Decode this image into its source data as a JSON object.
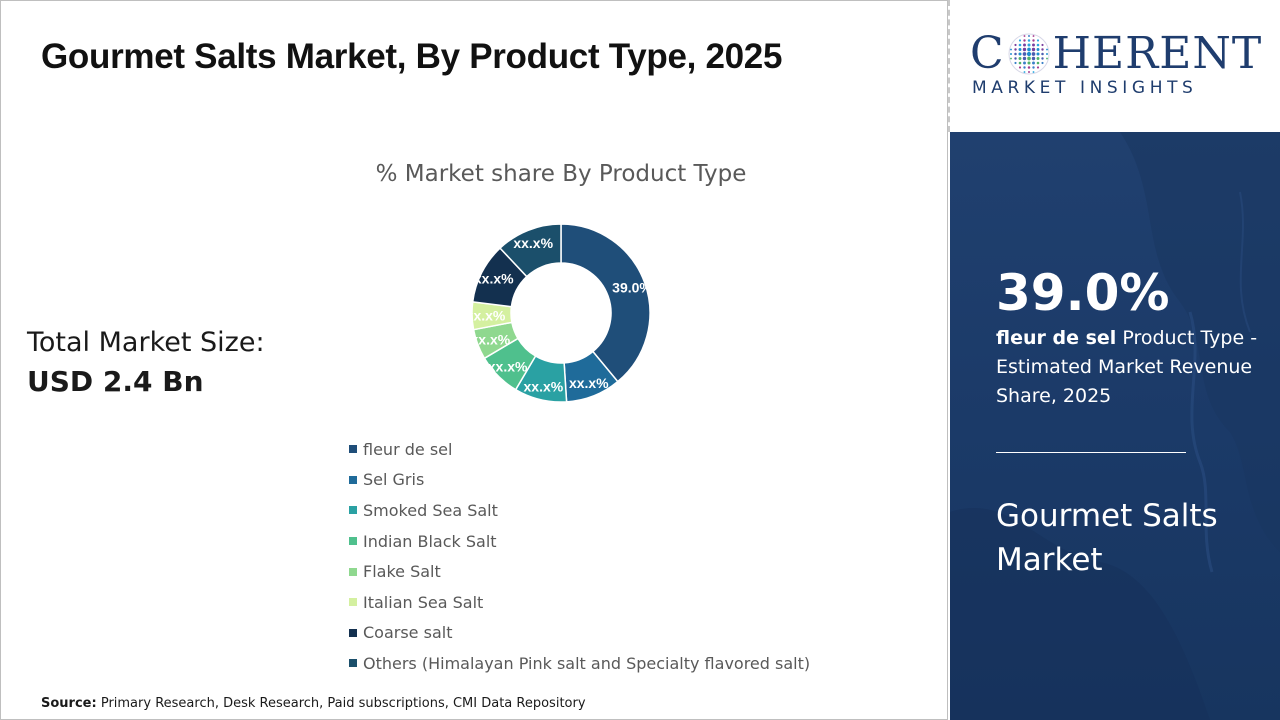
{
  "header": {
    "title": "Gourmet Salts Market, By Product Type, 2025"
  },
  "summary": {
    "total_label": "Total Market Size:",
    "total_value": "USD 2.4 Bn"
  },
  "chart_data": {
    "type": "pie",
    "variant": "donut",
    "title": "% Market share By Product Type",
    "categories": [
      "fleur de sel",
      "Sel Gris",
      "Smoked Sea Salt",
      "Indian Black Salt",
      "Flake Salt",
      "Italian Sea Salt",
      "Coarse salt",
      "Others (Himalayan Pink salt and Specialty flavored salt)"
    ],
    "values": [
      39.0,
      10.0,
      9.5,
      8.0,
      5.5,
      5.0,
      11.0,
      12.0
    ],
    "labels": [
      "39.0%",
      "xx.x%",
      "xx.x%",
      "xx.x%",
      "xx.x%",
      "xx.x%",
      "xx.x%",
      "xx.x%"
    ],
    "colors": [
      "#1f4e79",
      "#1f6b9a",
      "#2aa1a3",
      "#4fc08d",
      "#8fd88f",
      "#d4f0a0",
      "#13304f",
      "#1b4f6b"
    ],
    "legend_position": "bottom"
  },
  "source": {
    "label": "Source:",
    "text": "Primary Research, Desk Research, Paid subscriptions, CMI Data Repository"
  },
  "logo": {
    "main_left": "C",
    "main_right": "HERENT",
    "sub": "MARKET INSIGHTS"
  },
  "highlight": {
    "value": "39.0%",
    "segment": "fleur de sel",
    "desc": "Product Type - Estimated Market Revenue Share, 2025",
    "market_name": "Gourmet Salts Market"
  }
}
